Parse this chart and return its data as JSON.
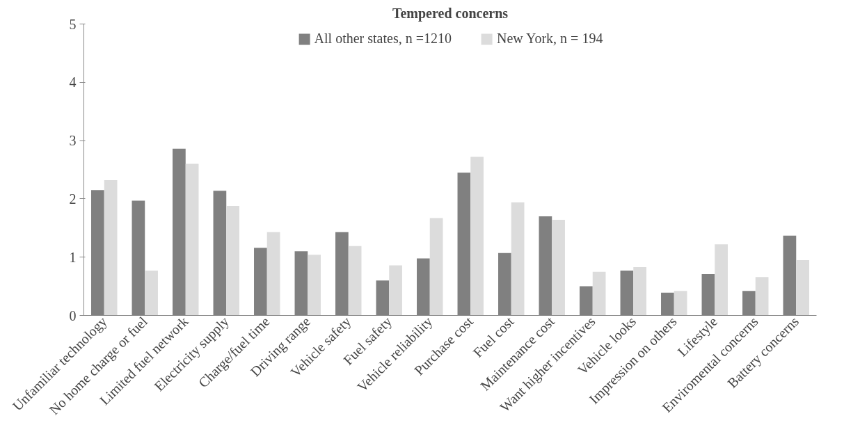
{
  "chart_data": {
    "type": "bar",
    "title": "Tempered concerns",
    "categories": [
      "Unfamiliar technology",
      "No home charge or fuel",
      "Limited fuel network",
      "Electricity supply",
      "Charge/fuel time",
      "Driving range",
      "Vehicle safety",
      "Fuel safety",
      "Vehicle reliability",
      "Purchase cost",
      "Fuel cost",
      "Maintenance cost",
      "Want higher incentives",
      "Vehicle looks",
      "Impression on others",
      "Lifestyle",
      "Enviromental concerns",
      "Battery concerns"
    ],
    "series": [
      {
        "name": "All other states, n =1210",
        "color": "#808080",
        "values": [
          2.15,
          1.97,
          2.86,
          2.14,
          1.16,
          1.1,
          1.43,
          0.6,
          0.98,
          2.45,
          1.07,
          1.7,
          0.5,
          0.77,
          0.39,
          0.71,
          0.42,
          1.37
        ]
      },
      {
        "name": "New York, n = 194",
        "color": "#dcdcdc",
        "values": [
          2.32,
          0.77,
          2.6,
          1.88,
          1.43,
          1.04,
          1.19,
          0.86,
          1.67,
          2.72,
          1.94,
          1.64,
          0.75,
          0.83,
          0.42,
          1.22,
          0.66,
          0.95
        ]
      }
    ],
    "ylim": [
      0,
      5
    ],
    "yticks": [
      0,
      1,
      2,
      3,
      4,
      5
    ],
    "grid": false,
    "legend": "top"
  }
}
